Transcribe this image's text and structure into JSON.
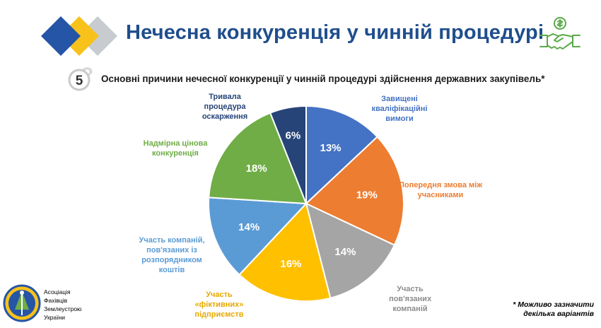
{
  "slide": {
    "title": "Нечесна конкуренція у чинній процедурі",
    "question_number": "5",
    "subtitle": "Основні причини нечесної конкуренції у чинній процедурі здійснення державних закупівель*",
    "footnote_line1": "* Можливо зазначити",
    "footnote_line2": "декілька варіантів"
  },
  "association": {
    "line1": "Асоціація",
    "line2": "Фахівців",
    "line3": "Землеустрою",
    "line4": "України"
  },
  "colors": {
    "title": "#1f4e8c",
    "logo_blue": "#2555a6",
    "logo_yellow": "#f8c21b",
    "logo_grey": "#c8ccd1",
    "icon_green": "#5aaa4a"
  },
  "icons": [
    "diamond-logo-icon",
    "handshake-money-icon",
    "question-badge-icon",
    "association-emblem-icon"
  ],
  "chart_data": {
    "type": "pie",
    "title": "Основні причини нечесної конкуренції у чинній процедурі здійснення державних закупівель*",
    "slices": [
      {
        "label": "Завищені кваліфікаційні вимоги",
        "value": 13,
        "display": "13%",
        "color": "#4472c4"
      },
      {
        "label": "Попередня змова між учасниками",
        "value": 19,
        "display": "19%",
        "color": "#ed7d31"
      },
      {
        "label": "Участь пов'язаних компаній",
        "value": 14,
        "display": "14%",
        "color": "#a5a5a5"
      },
      {
        "label": "Участь «фіктивних» підприємств",
        "value": 16,
        "display": "16%",
        "color": "#ffc000"
      },
      {
        "label": "Участь компаній, пов'язаних із розпорядником коштів",
        "value": 14,
        "display": "14%",
        "color": "#5b9bd5"
      },
      {
        "label": "Надмірна цінова конкуренція",
        "value": 18,
        "display": "18%",
        "color": "#70ad47"
      },
      {
        "label": "Тривала процедура оскарження",
        "value": 6,
        "display": "6%",
        "color": "#264478"
      }
    ]
  }
}
